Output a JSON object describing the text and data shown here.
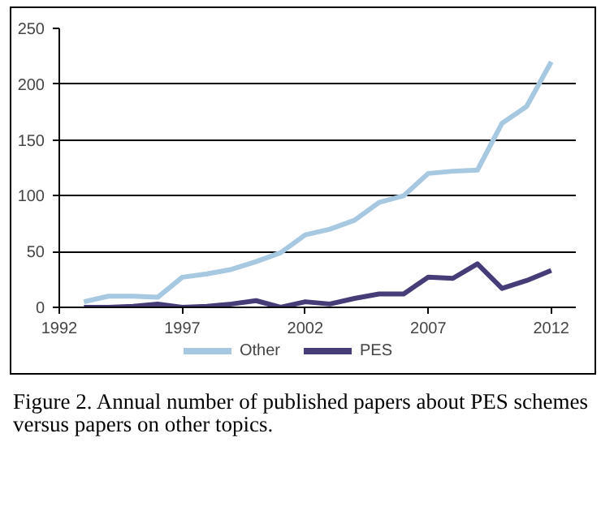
{
  "chart_data": {
    "type": "line",
    "x": [
      1993,
      1994,
      1995,
      1996,
      1997,
      1998,
      1999,
      2000,
      2001,
      2002,
      2003,
      2004,
      2005,
      2006,
      2007,
      2008,
      2009,
      2010,
      2011,
      2012
    ],
    "series": [
      {
        "name": "Other",
        "color": "#a6c8e0",
        "values": [
          5,
          10,
          10,
          9,
          27,
          30,
          34,
          41,
          49,
          65,
          70,
          78,
          94,
          100,
          120,
          122,
          123,
          165,
          180,
          220
        ]
      },
      {
        "name": "PES",
        "color": "#463c78",
        "values": [
          0,
          0,
          1,
          3,
          0,
          1,
          3,
          6,
          0,
          5,
          3,
          8,
          12,
          12,
          27,
          26,
          39,
          17,
          24,
          33
        ]
      }
    ],
    "xlim": [
      1992,
      2013
    ],
    "xticks": [
      1992,
      1997,
      2002,
      2007,
      2012
    ],
    "ylim": [
      0,
      250
    ],
    "yticks": [
      0,
      50,
      100,
      150,
      200,
      250
    ],
    "grid": "y",
    "legend": "bottom",
    "marker": "none",
    "line_style": "solid",
    "annotations": [
      "Figure 2. Annual number of published papers about PES schemes versus papers on other topics."
    ]
  }
}
